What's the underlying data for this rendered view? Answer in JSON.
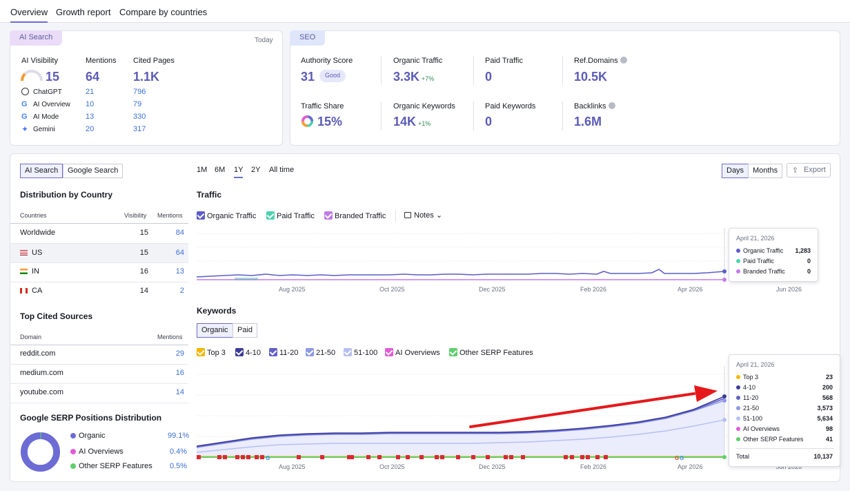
{
  "nav": {
    "tabs": [
      "Overview",
      "Growth report",
      "Compare by countries"
    ]
  },
  "ai_card": {
    "tag": "AI Search",
    "date": "Today",
    "col_visibility": "AI Visibility",
    "col_mentions": "Mentions",
    "col_cited": "Cited Pages",
    "visibility": "15",
    "mentions": "64",
    "cited": "1.1K",
    "engines": [
      {
        "name": "ChatGPT",
        "icon": "chatgpt-icon",
        "mentions": "21",
        "cited": "796"
      },
      {
        "name": "AI Overview",
        "icon": "google-icon",
        "mentions": "10",
        "cited": "79"
      },
      {
        "name": "AI Mode",
        "icon": "google-icon",
        "mentions": "13",
        "cited": "330"
      },
      {
        "name": "Gemini",
        "icon": "gemini-icon",
        "mentions": "20",
        "cited": "317"
      }
    ]
  },
  "seo_card": {
    "tag": "SEO",
    "authority_label": "Authority Score",
    "authority": "31",
    "authority_badge": "Good",
    "organic_traffic_label": "Organic Traffic",
    "organic_traffic": "3.3K",
    "organic_traffic_delta": "+7%",
    "paid_traffic_label": "Paid Traffic",
    "paid_traffic": "0",
    "refdomains_label": "Ref.Domains",
    "refdomains": "10.5K",
    "traffic_share_label": "Traffic Share",
    "traffic_share": "15%",
    "organic_kw_label": "Organic Keywords",
    "organic_kw": "14K",
    "organic_kw_delta": "+1%",
    "paid_kw_label": "Paid Keywords",
    "paid_kw": "0",
    "backlinks_label": "Backlinks",
    "backlinks": "1.6M"
  },
  "left_panel": {
    "toggle": [
      "AI Search",
      "Google Search"
    ],
    "dist_title": "Distribution by Country",
    "dist_headers": [
      "Countries",
      "Visibility",
      "Mentions"
    ],
    "dist_rows": [
      {
        "country": "Worldwide",
        "visibility": "15",
        "mentions": "84"
      },
      {
        "country": "US",
        "visibility": "15",
        "mentions": "64"
      },
      {
        "country": "IN",
        "visibility": "16",
        "mentions": "13"
      },
      {
        "country": "CA",
        "visibility": "14",
        "mentions": "2"
      }
    ],
    "sources_title": "Top Cited Sources",
    "sources_headers": [
      "Domain",
      "Mentions"
    ],
    "sources_rows": [
      {
        "domain": "reddit.com",
        "mentions": "29"
      },
      {
        "domain": "medium.com",
        "mentions": "16"
      },
      {
        "domain": "youtube.com",
        "mentions": "14"
      }
    ],
    "serp_title": "Google SERP Positions Distribution",
    "serp_rows": [
      {
        "label": "Organic",
        "value": "99.1%",
        "color": "#6c6cd4"
      },
      {
        "label": "AI Overviews",
        "value": "0.4%",
        "color": "#e25bd6"
      },
      {
        "label": "Other SERP Features",
        "value": "0.5%",
        "color": "#5fcf6e"
      }
    ]
  },
  "controls": {
    "periods": [
      "1M",
      "6M",
      "1Y",
      "2Y",
      "All time"
    ],
    "active_period": "1Y",
    "granularity": [
      "Days",
      "Months"
    ],
    "export": "Export"
  },
  "traffic_chart": {
    "title": "Traffic",
    "legend": [
      {
        "label": "Organic Traffic",
        "color": "#5c5cc8"
      },
      {
        "label": "Paid Traffic",
        "color": "#4fd1b0"
      },
      {
        "label": "Branded Traffic",
        "color": "#c17be8"
      }
    ],
    "notes": "Notes",
    "x_labels": [
      "Aug 2025",
      "Oct 2025",
      "Dec 2025",
      "Feb 2026",
      "Apr 2026",
      "Jun 2026"
    ],
    "tooltip": {
      "date": "April 21, 2026",
      "rows": [
        {
          "label": "Organic Traffic",
          "value": "1,283",
          "color": "#5c5cc8"
        },
        {
          "label": "Paid Traffic",
          "value": "0",
          "color": "#4fd1b0"
        },
        {
          "label": "Branded Traffic",
          "value": "0",
          "color": "#c17be8"
        }
      ]
    }
  },
  "keywords_chart": {
    "title": "Keywords",
    "toggle": [
      "Organic",
      "Paid"
    ],
    "legend": [
      {
        "label": "Top 3",
        "color": "#f5b700"
      },
      {
        "label": "4-10",
        "color": "#3d3d9c"
      },
      {
        "label": "11-20",
        "color": "#6060c8"
      },
      {
        "label": "21-50",
        "color": "#8c9ae6"
      },
      {
        "label": "51-100",
        "color": "#b6bff2"
      },
      {
        "label": "AI Overviews",
        "color": "#e25bd6"
      },
      {
        "label": "Other SERP Features",
        "color": "#5fcf6e"
      }
    ],
    "x_labels": [
      "Aug 2025",
      "Oct 2025",
      "Dec 2025",
      "Feb 2026",
      "Apr 2026",
      "Jun 2026"
    ],
    "tooltip": {
      "date": "April 21, 2026",
      "rows": [
        {
          "label": "Top 3",
          "value": "23",
          "color": "#f5b700"
        },
        {
          "label": "4-10",
          "value": "200",
          "color": "#3d3d9c"
        },
        {
          "label": "11-20",
          "value": "568",
          "color": "#6060c8"
        },
        {
          "label": "21-50",
          "value": "3,573",
          "color": "#8c9ae6"
        },
        {
          "label": "51-100",
          "value": "5,634",
          "color": "#b6bff2"
        },
        {
          "label": "AI Overviews",
          "value": "98",
          "color": "#e25bd6"
        },
        {
          "label": "Other SERP Features",
          "value": "41",
          "color": "#5fcf6e"
        }
      ],
      "total_label": "Total",
      "total": "10,137"
    }
  }
}
